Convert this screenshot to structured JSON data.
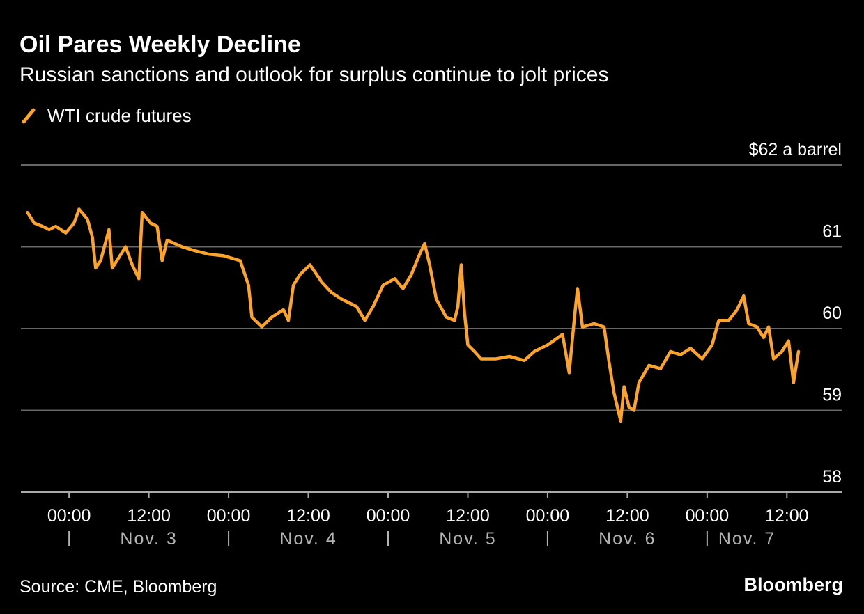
{
  "chart_data": {
    "type": "line",
    "title": "Oil Pares Weekly Decline",
    "subtitle": "Russian sanctions and outlook for surplus continue to jolt prices",
    "source": "Source: CME, Bloomberg",
    "brand": "Bloomberg",
    "x": [
      "Nov. 2 17:45",
      "Nov. 2 18:45",
      "Nov. 2 20:00",
      "Nov. 2 21:00",
      "Nov. 2 22:00",
      "Nov. 2 23:30",
      "Nov. 3 00:45",
      "Nov. 3 01:30",
      "Nov. 3 02:45",
      "Nov. 3 03:30",
      "Nov. 3 04:00",
      "Nov. 3 04:45",
      "Nov. 3 06:00",
      "Nov. 3 06:30",
      "Nov. 3 07:30",
      "Nov. 3 08:30",
      "Nov. 3 09:30",
      "Nov. 3 10:30",
      "Nov. 3 11:00",
      "Nov. 3 12:15",
      "Nov. 3 13:15",
      "Nov. 3 14:00",
      "Nov. 3 14:45",
      "Nov. 3 17:00",
      "Nov. 3 19:00",
      "Nov. 3 21:00",
      "Nov. 3 23:15",
      "Nov. 4 01:45",
      "Nov. 4 03:00",
      "Nov. 4 03:30",
      "Nov. 4 05:00",
      "Nov. 4 06:30",
      "Nov. 4 08:15",
      "Nov. 4 09:00",
      "Nov. 4 09:45",
      "Nov. 4 10:45",
      "Nov. 4 12:15",
      "Nov. 4 14:00",
      "Nov. 4 15:30",
      "Nov. 4 17:00",
      "Nov. 4 19:15",
      "Nov. 4 20:30",
      "Nov. 4 21:45",
      "Nov. 4 23:15",
      "Nov. 5 01:00",
      "Nov. 5 02:15",
      "Nov. 5 03:30",
      "Nov. 5 04:45",
      "Nov. 5 05:30",
      "Nov. 5 06:15",
      "Nov. 5 07:15",
      "Nov. 5 08:45",
      "Nov. 5 10:00",
      "Nov. 5 10:30",
      "Nov. 5 11:00",
      "Nov. 5 11:30",
      "Nov. 5 12:00",
      "Nov. 5 13:00",
      "Nov. 5 14:00",
      "Nov. 5 16:15",
      "Nov. 5 18:15",
      "Nov. 5 20:30",
      "Nov. 5 22:00",
      "Nov. 6 00:00",
      "Nov. 6 02:15",
      "Nov. 6 03:15",
      "Nov. 6 04:00",
      "Nov. 6 04:30",
      "Nov. 6 05:15",
      "Nov. 6 07:00",
      "Nov. 6 08:30",
      "Nov. 6 09:15",
      "Nov. 6 10:00",
      "Nov. 6 11:00",
      "Nov. 6 11:30",
      "Nov. 6 12:15",
      "Nov. 6 13:00",
      "Nov. 6 13:45",
      "Nov. 6 15:15",
      "Nov. 6 17:00",
      "Nov. 6 18:30",
      "Nov. 6 20:00",
      "Nov. 6 21:30",
      "Nov. 6 23:15",
      "Nov. 7 00:45",
      "Nov. 7 01:45",
      "Nov. 7 03:15",
      "Nov. 7 04:30",
      "Nov. 7 05:30",
      "Nov. 7 06:15",
      "Nov. 7 07:30",
      "Nov. 7 08:30",
      "Nov. 7 09:15",
      "Nov. 7 10:00",
      "Nov. 7 11:15",
      "Nov. 7 12:15",
      "Nov. 7 13:00",
      "Nov. 7 13:45"
    ],
    "series": [
      {
        "name": "WTI crude futures",
        "color": "#fca32b",
        "values": [
          61.42,
          61.29,
          61.25,
          61.21,
          61.25,
          61.17,
          61.29,
          61.46,
          61.34,
          61.12,
          60.74,
          60.83,
          61.21,
          60.74,
          60.87,
          61.0,
          60.78,
          60.61,
          61.42,
          61.29,
          61.25,
          60.83,
          61.08,
          61.0,
          60.95,
          60.91,
          60.89,
          60.83,
          60.53,
          60.14,
          60.02,
          60.14,
          60.23,
          60.1,
          60.53,
          60.66,
          60.78,
          60.57,
          60.44,
          60.36,
          60.27,
          60.1,
          60.27,
          60.53,
          60.61,
          60.49,
          60.66,
          60.91,
          61.04,
          60.78,
          60.36,
          60.14,
          60.1,
          60.27,
          60.78,
          60.19,
          59.8,
          59.72,
          59.63,
          59.63,
          59.66,
          59.61,
          59.72,
          59.8,
          59.93,
          59.46,
          60.1,
          60.49,
          60.02,
          60.06,
          60.02,
          59.59,
          59.21,
          58.87,
          59.29,
          59.04,
          59.0,
          59.34,
          59.55,
          59.51,
          59.72,
          59.68,
          59.76,
          59.63,
          59.8,
          60.1,
          60.1,
          60.23,
          60.4,
          60.06,
          60.02,
          59.89,
          60.02,
          59.63,
          59.72,
          59.85,
          59.34,
          59.72
        ]
      }
    ],
    "xlim": [
      "Nov. 2 16:45",
      "Nov. 7 20:15"
    ],
    "xticks": [
      {
        "value": "Nov. 3 00:00",
        "label": "00:00"
      },
      {
        "value": "Nov. 3 12:00",
        "label": "12:00"
      },
      {
        "value": "Nov. 4 00:00",
        "label": "00:00"
      },
      {
        "value": "Nov. 4 12:00",
        "label": "12:00"
      },
      {
        "value": "Nov. 5 00:00",
        "label": "00:00"
      },
      {
        "value": "Nov. 5 12:00",
        "label": "12:00"
      },
      {
        "value": "Nov. 6 00:00",
        "label": "00:00"
      },
      {
        "value": "Nov. 6 12:00",
        "label": "12:00"
      },
      {
        "value": "Nov. 7 00:00",
        "label": "00:00"
      },
      {
        "value": "Nov. 7 12:00",
        "label": "12:00"
      }
    ],
    "day_labels": [
      {
        "value": "Nov. 3 12:00",
        "label": "Nov. 3"
      },
      {
        "value": "Nov. 4 12:00",
        "label": "Nov. 4"
      },
      {
        "value": "Nov. 5 12:00",
        "label": "Nov. 5"
      },
      {
        "value": "Nov. 6 12:00",
        "label": "Nov. 6"
      },
      {
        "value": "Nov. 7 06:00",
        "label": "Nov. 7"
      }
    ],
    "ylim": [
      58,
      62
    ],
    "yticks": [
      58,
      59,
      60,
      61,
      {
        "value": 62,
        "label": "$62 a barrel"
      }
    ],
    "grid": true
  }
}
